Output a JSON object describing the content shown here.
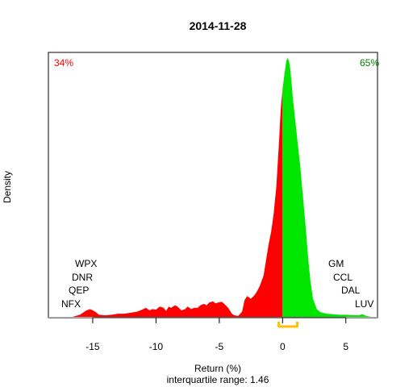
{
  "chart_data": {
    "type": "area",
    "title": "2014-11-28",
    "xlabel": "Return (%)",
    "subtitle": "interquartile range: 1.46",
    "ylabel": "Density",
    "xlim": [
      -18.5,
      7.5
    ],
    "ylim": [
      0,
      1
    ],
    "x_ticks": [
      -15,
      -10,
      -5,
      0,
      5
    ],
    "x_tick_labels": [
      "-15",
      "-10",
      "-5",
      "0",
      "5"
    ],
    "split_at": 0,
    "negative_pct": "34%",
    "positive_pct": "65%",
    "colors": {
      "negative": "#ff0000",
      "positive": "#00e600",
      "iqr": "#ffc000",
      "neg_text": "#ff0000",
      "pos_text": "#008000"
    },
    "iqr": [
      -0.3,
      1.16
    ],
    "density": {
      "x": [
        -16.6,
        -16.0,
        -15.5,
        -15.2,
        -14.8,
        -14.5,
        -14.0,
        -13.5,
        -13.0,
        -12.5,
        -12.0,
        -11.5,
        -11.0,
        -10.8,
        -10.5,
        -10.3,
        -10.0,
        -9.7,
        -9.4,
        -9.2,
        -9.0,
        -8.8,
        -8.5,
        -8.3,
        -8.0,
        -7.7,
        -7.5,
        -7.2,
        -7.0,
        -6.7,
        -6.5,
        -6.2,
        -6.0,
        -5.8,
        -5.5,
        -5.3,
        -5.1,
        -4.8,
        -4.6,
        -4.3,
        -4.0,
        -3.8,
        -3.5,
        -3.2,
        -3.0,
        -2.8,
        -2.5,
        -2.2,
        -2.0,
        -1.8,
        -1.5,
        -1.3,
        -1.1,
        -0.9,
        -0.7,
        -0.5,
        -0.3,
        -0.15,
        0.0,
        0.05,
        0.15,
        0.3,
        0.4,
        0.5,
        0.6,
        0.7,
        0.8,
        1.0,
        1.2,
        1.4,
        1.6,
        1.8,
        2.0,
        2.2,
        2.4,
        2.7,
        3.0,
        3.5,
        4.0,
        4.5,
        5.0,
        5.5,
        6.0,
        6.3,
        6.6,
        7.0
      ],
      "y": [
        0.0,
        0.008,
        0.025,
        0.03,
        0.02,
        0.008,
        0.006,
        0.008,
        0.012,
        0.012,
        0.016,
        0.02,
        0.03,
        0.035,
        0.025,
        0.03,
        0.028,
        0.04,
        0.035,
        0.022,
        0.04,
        0.035,
        0.045,
        0.04,
        0.025,
        0.03,
        0.04,
        0.03,
        0.035,
        0.035,
        0.045,
        0.05,
        0.045,
        0.055,
        0.06,
        0.052,
        0.055,
        0.058,
        0.05,
        0.035,
        0.012,
        0.006,
        0.004,
        0.02,
        0.065,
        0.08,
        0.07,
        0.085,
        0.1,
        0.12,
        0.16,
        0.22,
        0.28,
        0.33,
        0.4,
        0.5,
        0.66,
        0.8,
        0.88,
        0.9,
        0.94,
        0.99,
        1.0,
        0.99,
        0.96,
        0.91,
        0.85,
        0.76,
        0.67,
        0.58,
        0.47,
        0.36,
        0.24,
        0.14,
        0.07,
        0.03,
        0.018,
        0.012,
        0.01,
        0.008,
        0.008,
        0.007,
        0.006,
        0.01,
        0.004,
        0.0
      ]
    },
    "labels_left": [
      "WPX",
      "DNR",
      "QEP",
      "NFX"
    ],
    "labels_right": [
      "GM",
      "CCL",
      "DAL",
      "LUV"
    ]
  }
}
